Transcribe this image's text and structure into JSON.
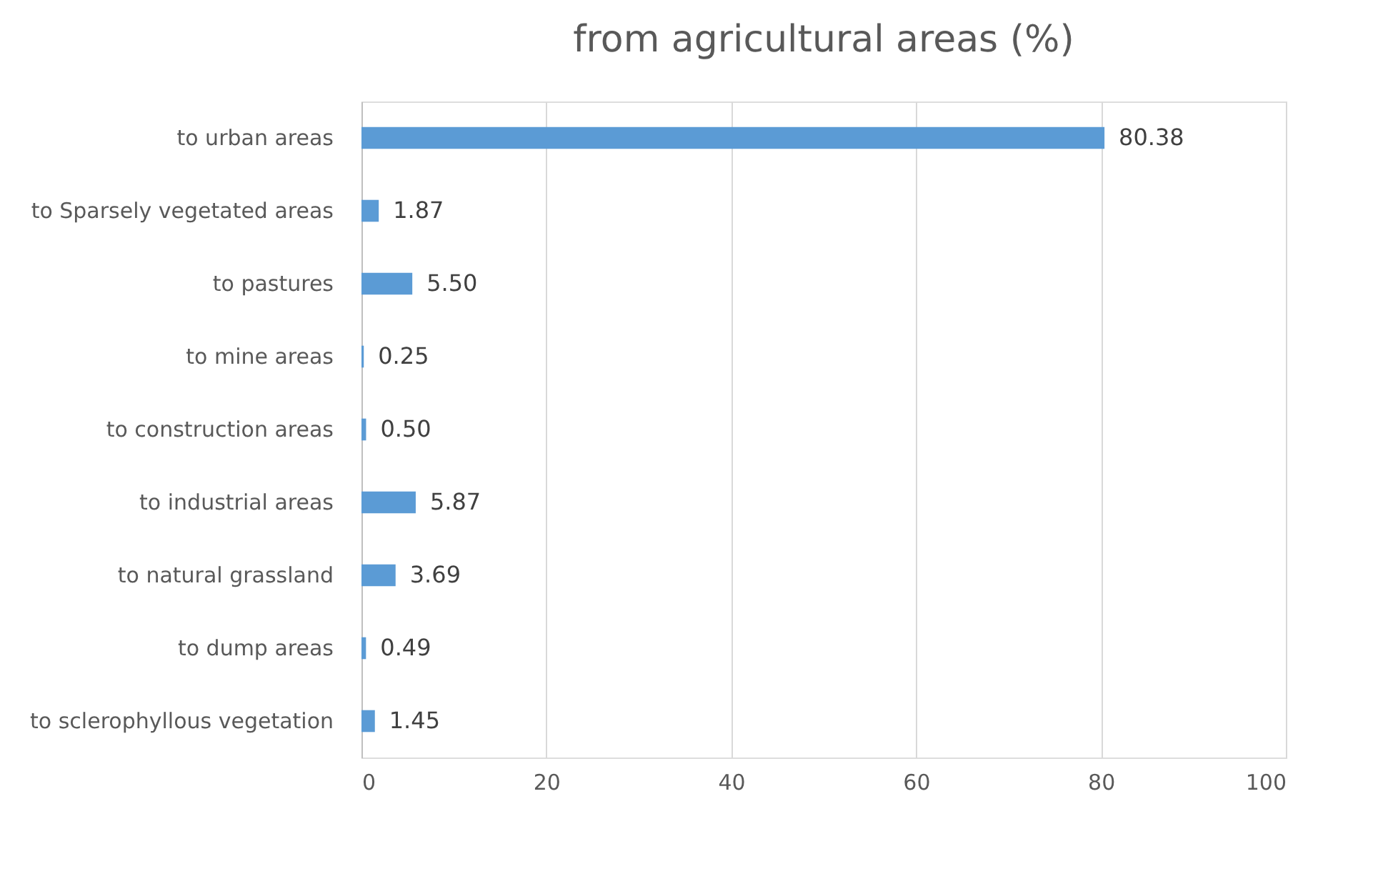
{
  "chart_data": {
    "type": "bar",
    "orientation": "horizontal",
    "title": "from agricultural areas (%)",
    "categories": [
      "to urban areas",
      "to Sparsely vegetated areas",
      "to pastures",
      "to mine areas",
      "to construction areas",
      "to industrial areas",
      "to natural grassland",
      "to dump areas",
      "to sclerophyllous vegetation"
    ],
    "values": [
      80.38,
      1.87,
      5.5,
      0.25,
      0.5,
      5.87,
      3.69,
      0.49,
      1.45
    ],
    "value_labels": [
      "80.38",
      "1.87",
      "5.50",
      "0.25",
      "0.50",
      "5.87",
      "3.69",
      "0.49",
      "1.45"
    ],
    "color": "#5b9bd5",
    "xlim": [
      0,
      100
    ],
    "xticks": [
      0,
      20,
      40,
      60,
      80,
      100
    ],
    "grid": "x"
  }
}
